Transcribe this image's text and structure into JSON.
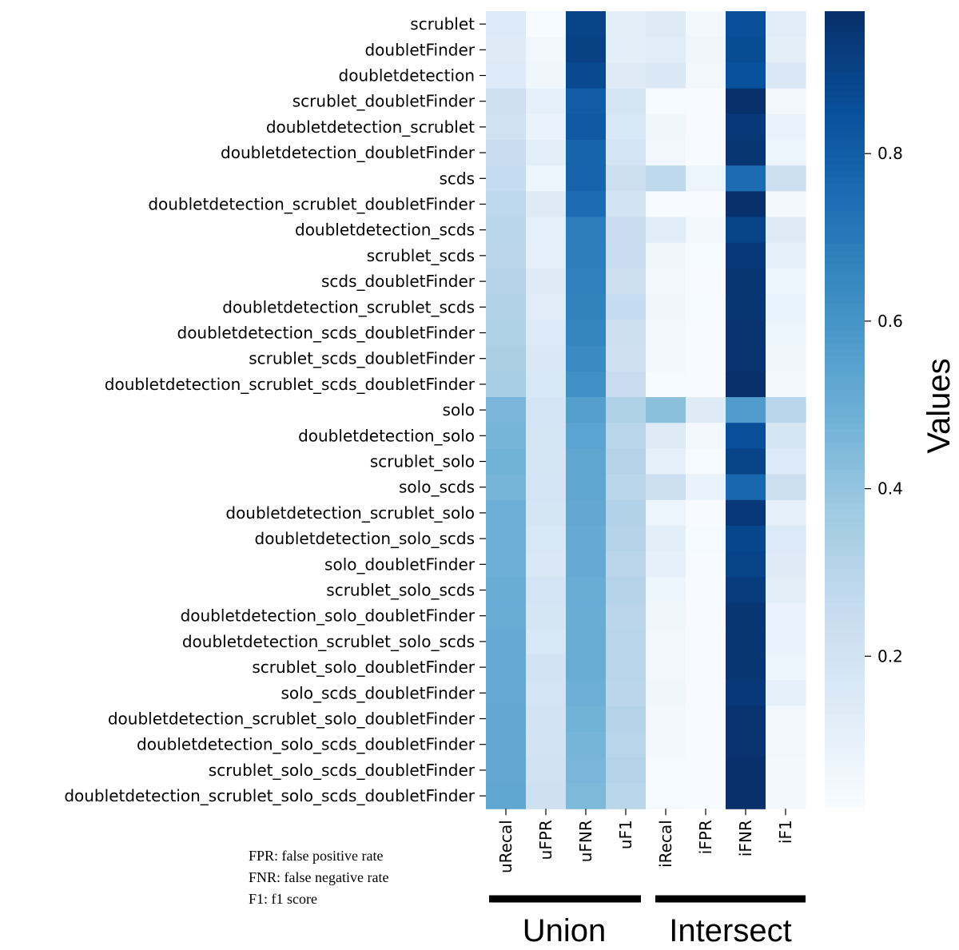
{
  "chart_data": {
    "type": "heatmap",
    "rows": [
      "scrublet",
      "doubletFinder",
      "doubletdetection",
      "scrublet_doubletFinder",
      "doubletdetection_scrublet",
      "doubletdetection_doubletFinder",
      "scds",
      "doubletdetection_scrublet_doubletFinder",
      "doubletdetection_scds",
      "scrublet_scds",
      "scds_doubletFinder",
      "doubletdetection_scrublet_scds",
      "doubletdetection_scds_doubletFinder",
      "scrublet_scds_doubletFinder",
      "doubletdetection_scrublet_scds_doubletFinder",
      "solo",
      "doubletdetection_solo",
      "scrublet_solo",
      "solo_scds",
      "doubletdetection_scrublet_solo",
      "doubletdetection_solo_scds",
      "solo_doubletFinder",
      "scrublet_solo_scds",
      "doubletdetection_solo_doubletFinder",
      "doubletdetection_scrublet_solo_scds",
      "scrublet_solo_doubletFinder",
      "solo_scds_doubletFinder",
      "doubletdetection_scrublet_solo_doubletFinder",
      "doubletdetection_solo_scds_doubletFinder",
      "scrublet_solo_scds_doubletFinder",
      "doubletdetection_scrublet_solo_scds_doubletFinder"
    ],
    "columns": [
      "uRecal",
      "uFPR",
      "uFNR",
      "uF1",
      "iRecal",
      "iFPR",
      "iFNR",
      "iF1"
    ],
    "values": [
      [
        0.15,
        0.03,
        0.9,
        0.12,
        0.14,
        0.04,
        0.86,
        0.13
      ],
      [
        0.14,
        0.05,
        0.91,
        0.12,
        0.13,
        0.06,
        0.87,
        0.12
      ],
      [
        0.15,
        0.06,
        0.88,
        0.14,
        0.16,
        0.05,
        0.85,
        0.16
      ],
      [
        0.22,
        0.1,
        0.81,
        0.18,
        0.03,
        0.02,
        0.97,
        0.05
      ],
      [
        0.21,
        0.08,
        0.82,
        0.17,
        0.06,
        0.02,
        0.94,
        0.08
      ],
      [
        0.24,
        0.12,
        0.78,
        0.19,
        0.05,
        0.02,
        0.95,
        0.07
      ],
      [
        0.26,
        0.07,
        0.78,
        0.23,
        0.28,
        0.07,
        0.75,
        0.23
      ],
      [
        0.28,
        0.14,
        0.75,
        0.2,
        0.02,
        0.01,
        0.98,
        0.04
      ],
      [
        0.3,
        0.11,
        0.69,
        0.24,
        0.13,
        0.04,
        0.9,
        0.14
      ],
      [
        0.29,
        0.1,
        0.69,
        0.25,
        0.06,
        0.03,
        0.94,
        0.1
      ],
      [
        0.31,
        0.14,
        0.68,
        0.23,
        0.05,
        0.02,
        0.95,
        0.07
      ],
      [
        0.32,
        0.13,
        0.67,
        0.26,
        0.06,
        0.03,
        0.95,
        0.09
      ],
      [
        0.33,
        0.15,
        0.66,
        0.23,
        0.04,
        0.02,
        0.96,
        0.07
      ],
      [
        0.34,
        0.16,
        0.64,
        0.22,
        0.04,
        0.02,
        0.96,
        0.06
      ],
      [
        0.35,
        0.17,
        0.62,
        0.24,
        0.03,
        0.01,
        0.97,
        0.05
      ],
      [
        0.46,
        0.19,
        0.56,
        0.33,
        0.42,
        0.14,
        0.57,
        0.3
      ],
      [
        0.47,
        0.18,
        0.54,
        0.3,
        0.14,
        0.04,
        0.86,
        0.18
      ],
      [
        0.48,
        0.18,
        0.53,
        0.31,
        0.11,
        0.03,
        0.9,
        0.15
      ],
      [
        0.47,
        0.19,
        0.53,
        0.3,
        0.23,
        0.08,
        0.77,
        0.23
      ],
      [
        0.49,
        0.18,
        0.52,
        0.32,
        0.07,
        0.02,
        0.94,
        0.11
      ],
      [
        0.49,
        0.17,
        0.51,
        0.31,
        0.12,
        0.03,
        0.89,
        0.15
      ],
      [
        0.49,
        0.16,
        0.51,
        0.29,
        0.1,
        0.02,
        0.9,
        0.14
      ],
      [
        0.5,
        0.19,
        0.5,
        0.31,
        0.07,
        0.02,
        0.93,
        0.12
      ],
      [
        0.5,
        0.18,
        0.5,
        0.29,
        0.06,
        0.02,
        0.95,
        0.08
      ],
      [
        0.51,
        0.17,
        0.5,
        0.3,
        0.05,
        0.02,
        0.95,
        0.08
      ],
      [
        0.51,
        0.2,
        0.5,
        0.3,
        0.05,
        0.02,
        0.95,
        0.07
      ],
      [
        0.51,
        0.19,
        0.49,
        0.29,
        0.06,
        0.02,
        0.94,
        0.1
      ],
      [
        0.52,
        0.2,
        0.48,
        0.31,
        0.04,
        0.02,
        0.96,
        0.05
      ],
      [
        0.52,
        0.2,
        0.47,
        0.3,
        0.04,
        0.02,
        0.96,
        0.05
      ],
      [
        0.52,
        0.21,
        0.46,
        0.31,
        0.03,
        0.01,
        0.98,
        0.04
      ],
      [
        0.53,
        0.22,
        0.45,
        0.3,
        0.03,
        0.01,
        0.98,
        0.04
      ]
    ],
    "colormap": "Blues",
    "colorbar": {
      "label": "Values",
      "ticks": [
        "0.2",
        "0.4",
        "0.6",
        "0.8"
      ],
      "range": [
        0.02,
        0.97
      ]
    },
    "groups": [
      "Union",
      "Intersect"
    ],
    "notes": [
      "FPR: false positive rate",
      "FNR: false negative rate",
      "F1: f1 score"
    ]
  }
}
